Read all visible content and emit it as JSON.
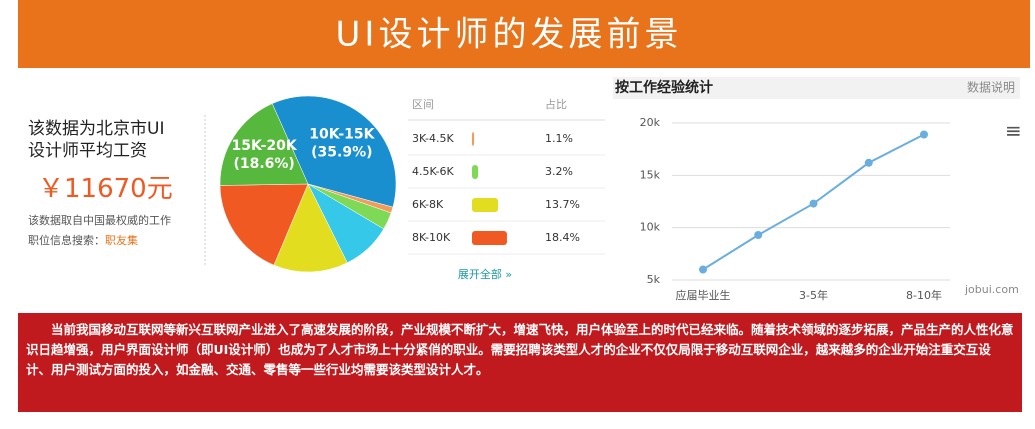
{
  "header": {
    "title": "UI设计师的发展前景"
  },
  "summary": {
    "line1": "该数据为北京市UI",
    "line2": "设计师平均工资",
    "salary": "￥11670元",
    "source1": "该数据取自中国最权威的工作",
    "source2": "职位信息搜索：",
    "source_link": "职友集"
  },
  "chart_data": [
    {
      "type": "pie",
      "categories": [
        "10K-15K",
        "3K-4.5K",
        "4.5K-6K",
        null,
        "6K-8K",
        "8K-10K",
        "15K-20K"
      ],
      "values": [
        35.9,
        1.1,
        3.2,
        9.1,
        13.7,
        18.4,
        18.6
      ],
      "value_labels": [
        "(35.9%)",
        null,
        null,
        null,
        null,
        null,
        "(18.6%)"
      ],
      "colors": [
        "#1a8fd0",
        "#f39c5a",
        "#7ed957",
        "#35c8e8",
        "#e2dd1e",
        "#f05a22",
        "#56b83c"
      ]
    },
    {
      "type": "line",
      "title": "按工作经验统计",
      "note": "数据说明",
      "categories": [
        "应届毕业生",
        null,
        "3-5年",
        null,
        "8-10年"
      ],
      "values": [
        6000,
        9300,
        12300,
        16200,
        18900
      ],
      "color": "#6aaee0",
      "ylim": [
        5000,
        20000
      ],
      "yticks": [
        {
          "value": 5000,
          "label": "5k"
        },
        {
          "value": 10000,
          "label": "10k"
        },
        {
          "value": 15000,
          "label": "15k"
        },
        {
          "value": 20000,
          "label": "20k"
        }
      ],
      "grid": true
    }
  ],
  "table": {
    "header": [
      "区间",
      "占比"
    ],
    "rows": [
      [
        "3K-4.5K",
        "1.1%"
      ],
      [
        "4.5K-6K",
        "3.2%"
      ],
      [
        "6K-8K",
        "13.7%"
      ],
      [
        "8K-10K",
        "18.4%"
      ]
    ],
    "more": "展开全部 »"
  },
  "watermark": "jobui.com",
  "paragraph": "当前我国移动互联网等新兴互联网产业进入了高速发展的阶段，产业规模不断扩大，增速飞快，用户体验至上的时代已经来临。随着技术领域的逐步拓展，产品生产的人性化意识日趋增强，用户界面设计师（即UI设计师）也成为了人才市场上十分紧俏的职业。需要招聘该类型人才的企业不仅仅局限于移动互联网企业，越来越多的企业开始注重交互设计、用户测试方面的投入，如金融、交通、零售等一些行业均需要该类型设计人才。"
}
